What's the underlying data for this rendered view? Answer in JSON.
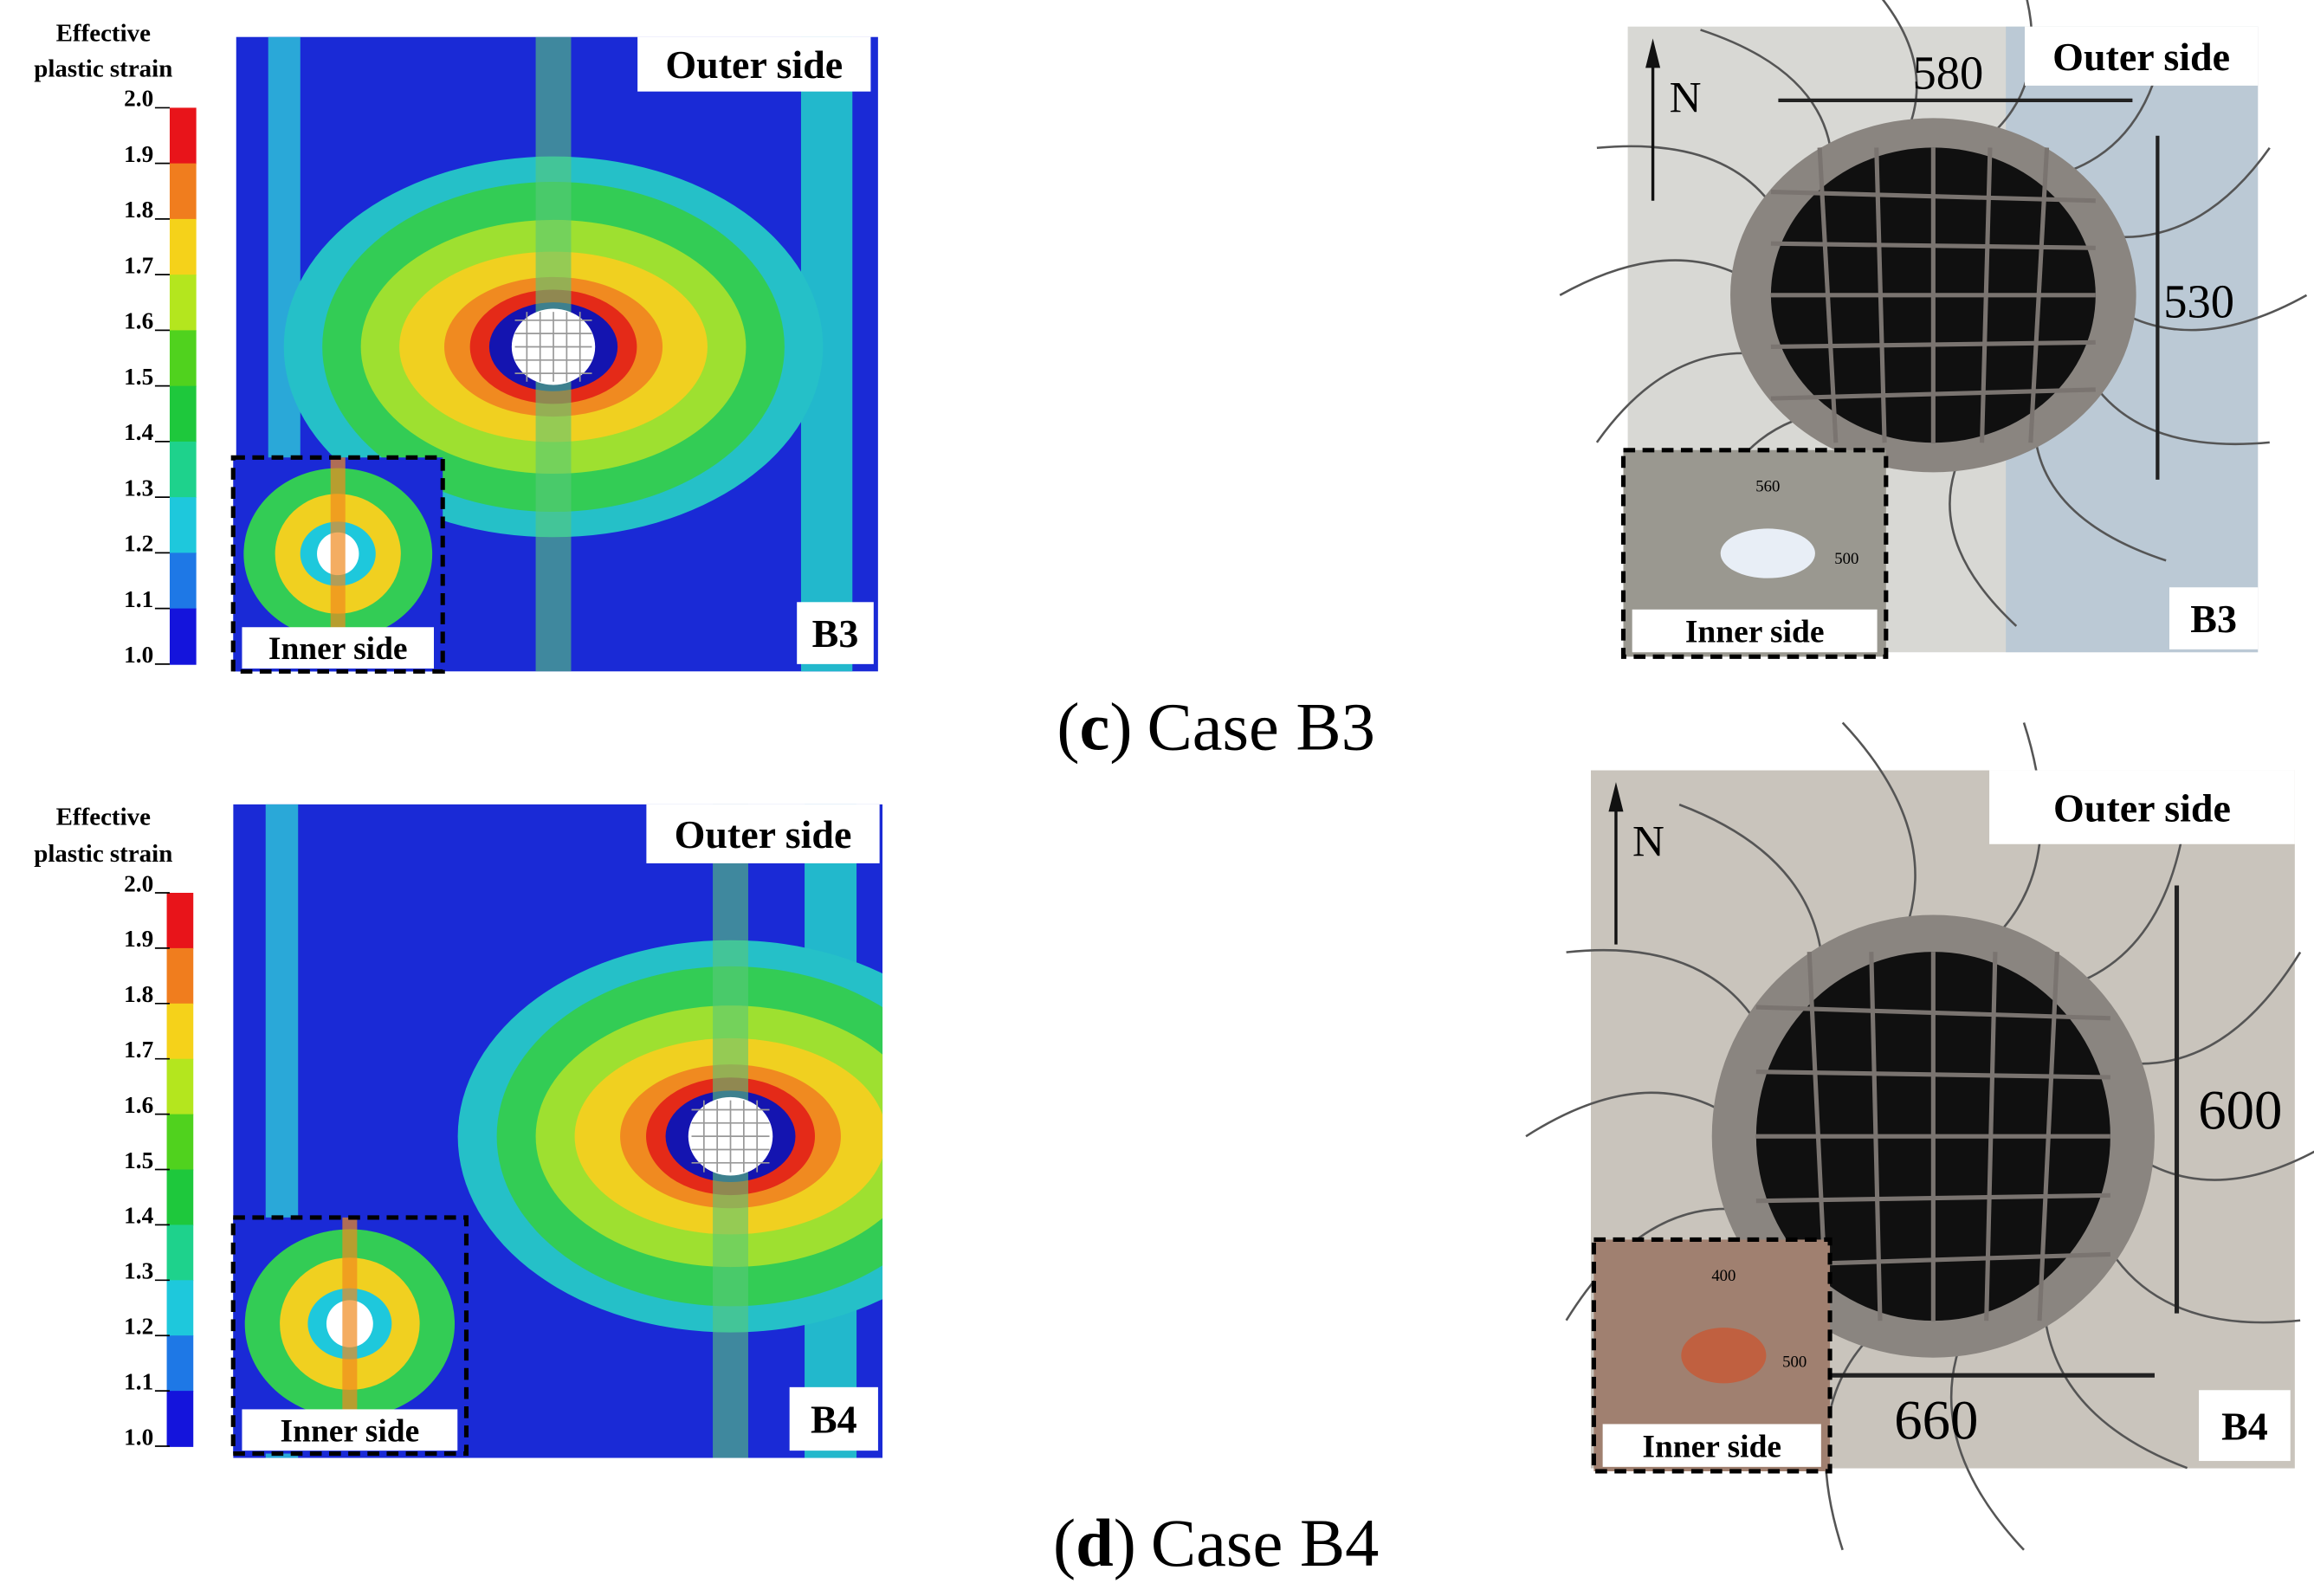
{
  "colorbar": {
    "title_line1": "Effective",
    "title_line2": "plastic strain",
    "ticks": [
      "2.0",
      "1.9",
      "1.8",
      "1.7",
      "1.6",
      "1.5",
      "1.4",
      "1.3",
      "1.2",
      "1.1",
      "1.0"
    ],
    "colors": [
      "#e8141a",
      "#f07d1e",
      "#f5d21a",
      "#b4e61e",
      "#50d21e",
      "#1ec83c",
      "#1ed28c",
      "#1ec8dc",
      "#1e78e6",
      "#1414dc"
    ]
  },
  "panels": [
    {
      "outer_label": "Outer side",
      "inner_label": "Inner side",
      "case_tag_sim": "B3",
      "case_tag_photo": "B3",
      "north": "N",
      "dims": [
        "580",
        "530"
      ],
      "inset_dims": [
        "560",
        "500"
      ],
      "caption": {
        "open": "(",
        "letter": "c",
        "close": ")",
        "text": "Case B3"
      }
    },
    {
      "outer_label": "Outer side",
      "inner_label": "Inner side",
      "case_tag_sim": "B4",
      "case_tag_photo": "B4",
      "north": "N",
      "dims": [
        "600",
        "660"
      ],
      "inset_dims": [
        "400",
        "500"
      ],
      "caption": {
        "open": "(",
        "letter": "d",
        "close": ")",
        "text": "Case B4"
      }
    }
  ]
}
